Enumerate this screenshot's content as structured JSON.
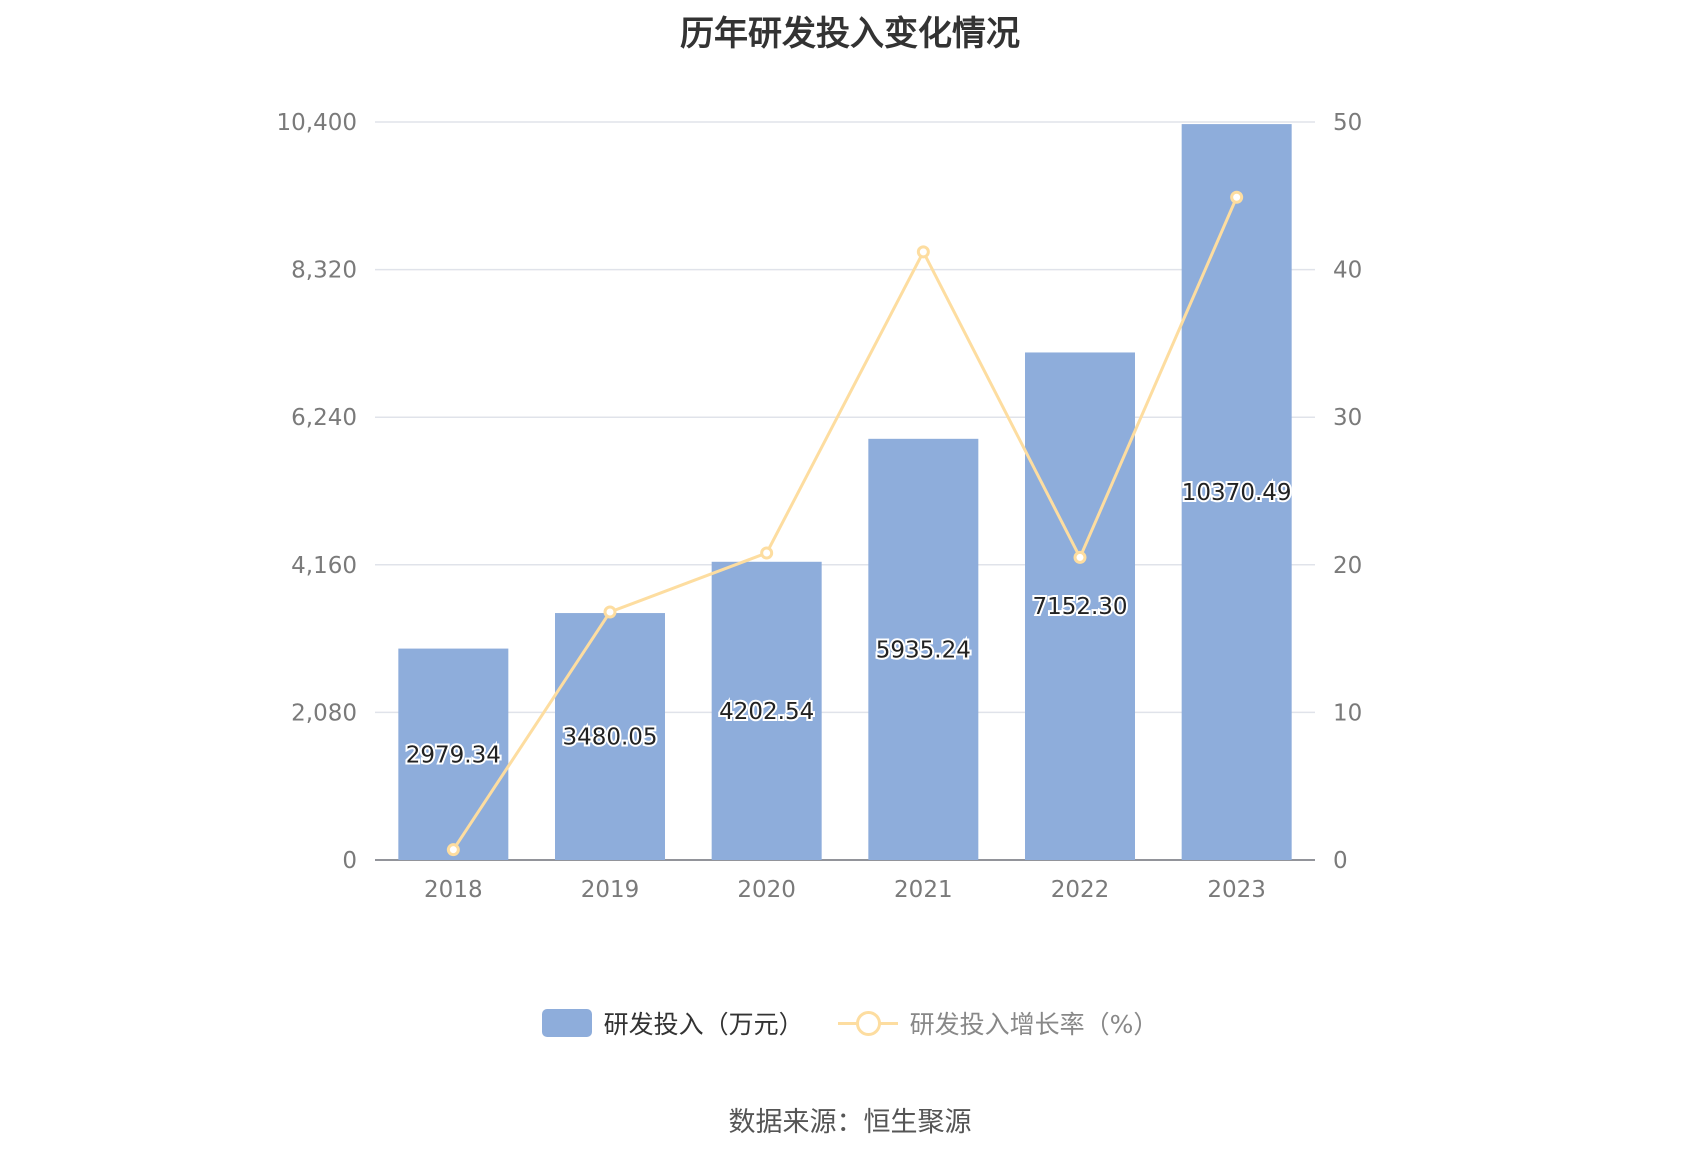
{
  "chart_data": {
    "type": "bar",
    "title": "历年研发投入变化情况",
    "categories": [
      "2018",
      "2019",
      "2020",
      "2021",
      "2022",
      "2023"
    ],
    "series": [
      {
        "name": "研发投入（万元）",
        "type": "bar",
        "axis": "left",
        "values": [
          2979.34,
          3480.05,
          4202.54,
          5935.24,
          7152.3,
          10370.49
        ],
        "labels": [
          "2979.34",
          "3480.05",
          "4202.54",
          "5935.24",
          "7152.30",
          "10370.49"
        ],
        "color": "#8eaddb"
      },
      {
        "name": "研发投入增长率（%）",
        "type": "line",
        "axis": "right",
        "values": [
          0.7,
          16.8,
          20.8,
          41.2,
          20.5,
          44.9
        ],
        "color": "#fddda0"
      }
    ],
    "y_left": {
      "ylim": [
        0,
        10400
      ],
      "ticks": [
        "0",
        "2,080",
        "4,160",
        "6,240",
        "8,320",
        "10,400"
      ]
    },
    "y_right": {
      "ylim": [
        0,
        50
      ],
      "ticks": [
        "0",
        "10",
        "20",
        "30",
        "40",
        "50"
      ]
    },
    "grid": true,
    "legend": "bottom"
  },
  "legend": {
    "bar_label": "研发投入（万元）",
    "line_label": "研发投入增长率（%）"
  },
  "source": "数据来源：恒生聚源"
}
